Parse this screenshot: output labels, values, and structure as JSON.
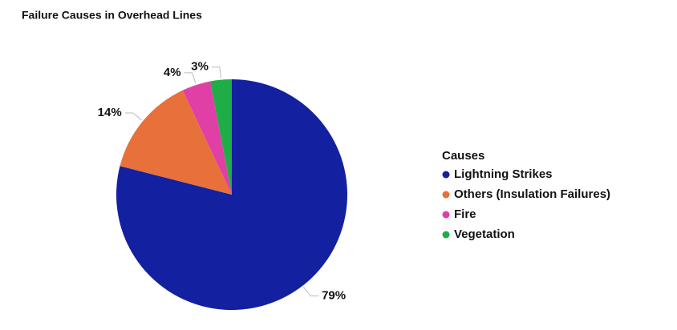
{
  "chart_data": {
    "type": "pie",
    "title": "Failure Causes in Overhead Lines",
    "legend_title": "Causes",
    "categories": [
      "Lightning Strikes",
      "Others (Insulation Failures)",
      "Fire",
      "Vegetation"
    ],
    "values": [
      79,
      14,
      4,
      3
    ],
    "value_labels": [
      "79%",
      "14%",
      "4%",
      "3%"
    ],
    "colors": [
      "#13209f",
      "#e8703a",
      "#e040a6",
      "#1fae45"
    ],
    "legend_position": "right"
  }
}
